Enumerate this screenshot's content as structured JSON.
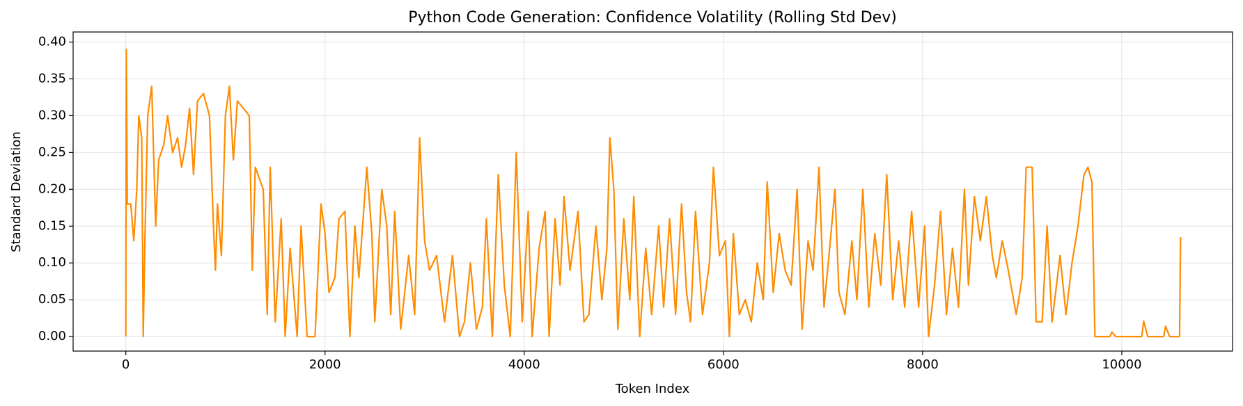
{
  "chart_data": {
    "type": "line",
    "title": "Python Code Generation: Confidence Volatility (Rolling Std Dev)",
    "x_label": "Token Index",
    "y_label": "Standard Deviation",
    "x": [
      0,
      5,
      15,
      50,
      80,
      110,
      130,
      160,
      175,
      190,
      220,
      260,
      300,
      330,
      380,
      420,
      470,
      520,
      560,
      600,
      640,
      680,
      720,
      780,
      840,
      880,
      900,
      920,
      960,
      1000,
      1040,
      1080,
      1120,
      1180,
      1240,
      1270,
      1300,
      1380,
      1420,
      1450,
      1500,
      1560,
      1600,
      1650,
      1720,
      1760,
      1820,
      1900,
      1960,
      2000,
      2040,
      2100,
      2140,
      2200,
      2250,
      2300,
      2340,
      2420,
      2470,
      2500,
      2570,
      2620,
      2660,
      2700,
      2760,
      2840,
      2900,
      2950,
      3000,
      3050,
      3120,
      3200,
      3280,
      3350,
      3400,
      3460,
      3520,
      3580,
      3620,
      3680,
      3740,
      3800,
      3860,
      3920,
      3980,
      4040,
      4080,
      4150,
      4210,
      4250,
      4310,
      4360,
      4400,
      4460,
      4540,
      4600,
      4650,
      4720,
      4780,
      4830,
      4860,
      4900,
      4940,
      5000,
      5060,
      5100,
      5160,
      5220,
      5280,
      5350,
      5400,
      5460,
      5520,
      5580,
      5630,
      5670,
      5720,
      5790,
      5860,
      5900,
      5960,
      6020,
      6060,
      6100,
      6160,
      6220,
      6280,
      6340,
      6400,
      6440,
      6500,
      6560,
      6620,
      6680,
      6740,
      6790,
      6850,
      6900,
      6960,
      7010,
      7060,
      7120,
      7160,
      7220,
      7290,
      7340,
      7400,
      7460,
      7520,
      7580,
      7640,
      7700,
      7760,
      7820,
      7890,
      7960,
      8020,
      8060,
      8120,
      8180,
      8240,
      8300,
      8360,
      8420,
      8460,
      8520,
      8580,
      8640,
      8700,
      8740,
      8800,
      8860,
      8940,
      9000,
      9040,
      9100,
      9140,
      9200,
      9250,
      9300,
      9380,
      9440,
      9500,
      9560,
      9620,
      9660,
      9700,
      9730,
      9880,
      9900,
      9940,
      10200,
      10220,
      10260,
      10420,
      10440,
      10480,
      10580,
      10590
    ],
    "series": [
      {
        "name": "Rolling Std Dev",
        "color": "#ff8c00",
        "values": [
          0,
          0.39,
          0.18,
          0.18,
          0.13,
          0.2,
          0.3,
          0.27,
          0.0,
          0.12,
          0.3,
          0.34,
          0.15,
          0.24,
          0.26,
          0.3,
          0.25,
          0.27,
          0.23,
          0.26,
          0.31,
          0.22,
          0.32,
          0.33,
          0.3,
          0.15,
          0.09,
          0.18,
          0.11,
          0.3,
          0.34,
          0.24,
          0.32,
          0.31,
          0.3,
          0.09,
          0.23,
          0.2,
          0.03,
          0.23,
          0.02,
          0.16,
          0.0,
          0.12,
          0.0,
          0.15,
          0.0,
          0.0,
          0.18,
          0.14,
          0.06,
          0.08,
          0.16,
          0.17,
          0.0,
          0.15,
          0.08,
          0.23,
          0.14,
          0.02,
          0.2,
          0.15,
          0.03,
          0.17,
          0.01,
          0.11,
          0.03,
          0.27,
          0.13,
          0.09,
          0.11,
          0.02,
          0.11,
          0.0,
          0.02,
          0.1,
          0.01,
          0.04,
          0.16,
          0.0,
          0.22,
          0.07,
          0.0,
          0.25,
          0.02,
          0.17,
          0.0,
          0.12,
          0.17,
          0.0,
          0.16,
          0.07,
          0.19,
          0.09,
          0.17,
          0.02,
          0.03,
          0.15,
          0.05,
          0.12,
          0.27,
          0.2,
          0.01,
          0.16,
          0.05,
          0.19,
          0.0,
          0.12,
          0.03,
          0.15,
          0.04,
          0.16,
          0.03,
          0.18,
          0.06,
          0.02,
          0.17,
          0.03,
          0.1,
          0.23,
          0.11,
          0.13,
          0.0,
          0.14,
          0.03,
          0.05,
          0.02,
          0.1,
          0.05,
          0.21,
          0.06,
          0.14,
          0.09,
          0.07,
          0.2,
          0.01,
          0.13,
          0.09,
          0.23,
          0.04,
          0.11,
          0.2,
          0.06,
          0.03,
          0.13,
          0.05,
          0.2,
          0.04,
          0.14,
          0.07,
          0.22,
          0.05,
          0.13,
          0.04,
          0.17,
          0.04,
          0.15,
          0.0,
          0.07,
          0.17,
          0.03,
          0.12,
          0.04,
          0.2,
          0.07,
          0.19,
          0.13,
          0.19,
          0.11,
          0.08,
          0.13,
          0.09,
          0.03,
          0.08,
          0.23,
          0.23,
          0.02,
          0.02,
          0.15,
          0.02,
          0.11,
          0.03,
          0.1,
          0.15,
          0.22,
          0.23,
          0.21,
          0.0,
          0.0,
          0.006,
          0.0,
          0.0,
          0.021,
          0.0,
          0.0,
          0.014,
          0.0,
          0.0,
          0.135
        ]
      }
    ],
    "xlim": [
      -529,
      11112
    ],
    "ylim": [
      -0.0197,
      0.4137
    ],
    "xticks": [
      0,
      2000,
      4000,
      6000,
      8000,
      10000
    ],
    "yticks": [
      {
        "value": 0,
        "label": "0.00"
      },
      {
        "value": 0.05,
        "label": "0.05"
      },
      {
        "value": 0.1,
        "label": "0.10"
      },
      {
        "value": 0.15,
        "label": "0.15"
      },
      {
        "value": 0.2,
        "label": "0.20"
      },
      {
        "value": 0.25,
        "label": "0.25"
      },
      {
        "value": 0.3,
        "label": "0.30"
      },
      {
        "value": 0.35,
        "label": "0.35"
      },
      {
        "value": 0.4,
        "label": "0.40"
      }
    ],
    "grid": true
  }
}
